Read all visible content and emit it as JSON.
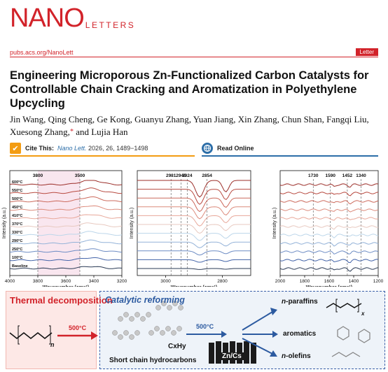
{
  "journal": {
    "logo_main": "NANO",
    "logo_sub": "LETTERS",
    "url": "pubs.acs.org/NanoLett",
    "article_type": "Letter"
  },
  "article": {
    "title": "Engineering Microporous Zn-Functionalized Carbon Catalysts for Controllable Chain Cracking and Aromatization in Polyethylene Upcycling",
    "authors": "Jin Wang, Qing Cheng, Ge Kong, Guanyu Zhang, Yuan Jiang, Xin Zhang, Chun Shan, Fangqi Liu, Xuesong Zhang,",
    "authors_corresponding_mark": "*",
    "authors_last": " and Lujia Han",
    "cite_label": "Cite This:",
    "cite_journal": "Nano Lett.",
    "cite_rest": " 2026, 26, 1489−1498",
    "read_online": "Read Online"
  },
  "chart_data": [
    {
      "type": "line",
      "xlabel": "Wavenumber (cm⁻¹)",
      "ylabel": "Intensity (a.u.)",
      "xlim": [
        4000,
        3200
      ],
      "x_ticks": [
        "4000",
        "3800",
        "3600",
        "3400",
        "3200"
      ],
      "annotations": [
        "3800",
        "3500"
      ],
      "series": [
        {
          "name": "Baseline",
          "color": "#2b3b55"
        },
        {
          "name": "100°C",
          "color": "#4263a8"
        },
        {
          "name": "250°C",
          "color": "#6d8cc4"
        },
        {
          "name": "290°C",
          "color": "#93b2d8"
        },
        {
          "name": "330°C",
          "color": "#bcd6ea"
        },
        {
          "name": "370°C",
          "color": "#e8c9c0"
        },
        {
          "name": "410°C",
          "color": "#e8a89a"
        },
        {
          "name": "450°C",
          "color": "#dc8b7c"
        },
        {
          "name": "500°C",
          "color": "#cc6a5c"
        },
        {
          "name": "550°C",
          "color": "#b84a40"
        },
        {
          "name": "600°C",
          "color": "#9c2f2a"
        }
      ]
    },
    {
      "type": "line",
      "xlabel": "Wavenumber (cm⁻¹)",
      "ylabel": "Intensity (a.u.)",
      "xlim": [
        3100,
        2700
      ],
      "x_ticks": [
        "3000",
        "2800"
      ],
      "annotations": [
        "2981",
        "2946",
        "2924",
        "2854"
      ]
    },
    {
      "type": "line",
      "xlabel": "Wavenumber (cm⁻¹)",
      "ylabel": "Intensity (a.u.)",
      "xlim": [
        2000,
        1200
      ],
      "x_ticks": [
        "2000",
        "1800",
        "1600",
        "1400",
        "1200"
      ],
      "annotations": [
        "1730",
        "1590",
        "1452",
        "1340"
      ]
    }
  ],
  "toc": {
    "thermal_title": "Thermal decomposition",
    "thermal_temp": "500°C",
    "chain_subscript": "n",
    "reforming_title": "Catalytic reforming",
    "reforming_temp": "500°C",
    "short_chain": "Short chain hydrocarbons",
    "cxhy": "CxHy",
    "catalyst": "Zn/Cs",
    "product_paraffins": "-paraffins",
    "product_olefins": "-olefins",
    "product_prefix": "n",
    "product_aromatics": "aromatics",
    "paraffin_subscript": "x"
  }
}
